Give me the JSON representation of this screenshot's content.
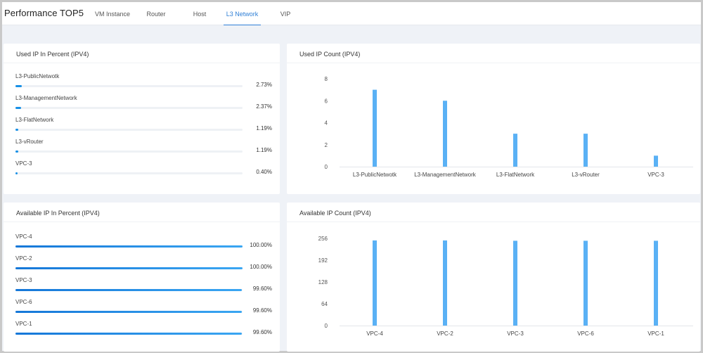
{
  "header": {
    "title": "Performance TOP5",
    "tabs": [
      {
        "label": "VM Instance",
        "active": false
      },
      {
        "label": "Router",
        "active": false
      },
      {
        "label": "Host",
        "active": false
      },
      {
        "label": "L3 Network",
        "active": true
      },
      {
        "label": "VIP",
        "active": false
      }
    ]
  },
  "colors": {
    "accent": "#2f7fd6",
    "bar": "#5ab1f5",
    "progress": "#1890e6"
  },
  "used_percent": {
    "title": "Used IP In Percent (IPV4)",
    "items": [
      {
        "label": "L3-PublicNetwotk",
        "value": "2.73%",
        "fraction": 0.0273
      },
      {
        "label": "L3-ManagementNetwork",
        "value": "2.37%",
        "fraction": 0.0237
      },
      {
        "label": "L3-FlatNetwork",
        "value": "1.19%",
        "fraction": 0.0119
      },
      {
        "label": "L3-vRouter",
        "value": "1.19%",
        "fraction": 0.0119
      },
      {
        "label": "VPC-3",
        "value": "0.40%",
        "fraction": 0.004
      }
    ]
  },
  "available_percent": {
    "title": "Available IP In Percent (IPV4)",
    "items": [
      {
        "label": "VPC-4",
        "value": "100.00%",
        "fraction": 1.0
      },
      {
        "label": "VPC-2",
        "value": "100.00%",
        "fraction": 1.0
      },
      {
        "label": "VPC-3",
        "value": "99.60%",
        "fraction": 0.996
      },
      {
        "label": "VPC-6",
        "value": "99.60%",
        "fraction": 0.996
      },
      {
        "label": "VPC-1",
        "value": "99.60%",
        "fraction": 0.996
      }
    ]
  },
  "chart_data": [
    {
      "type": "bar",
      "title": "Used IP Count (IPV4)",
      "categories": [
        "L3-PublicNetwotk",
        "L3-ManagementNetwork",
        "L3-FlatNetwork",
        "L3-vRouter",
        "VPC-3"
      ],
      "values": [
        7,
        6,
        3,
        3,
        1
      ],
      "yticks": [
        0,
        2,
        4,
        6,
        8
      ],
      "ylim": [
        0,
        8
      ],
      "grid": false,
      "legend": "none"
    },
    {
      "type": "bar",
      "title": "Available IP Count (IPV4)",
      "categories": [
        "VPC-4",
        "VPC-2",
        "VPC-3",
        "VPC-6",
        "VPC-1"
      ],
      "values": [
        250,
        250,
        249,
        249,
        249
      ],
      "yticks": [
        0,
        64,
        128,
        192,
        256
      ],
      "ylim": [
        0,
        256
      ],
      "grid": false,
      "legend": "none"
    }
  ]
}
